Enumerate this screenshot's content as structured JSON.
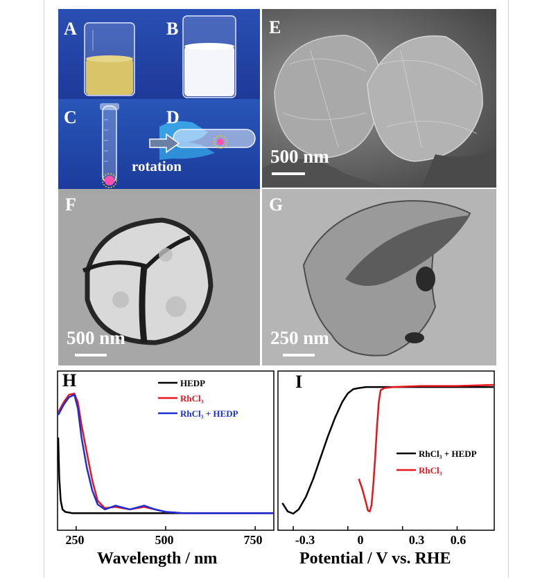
{
  "figure": {
    "panels": {
      "A": "A",
      "B": "B",
      "C": "C",
      "D": "D",
      "E": "E",
      "F": "F",
      "G": "G",
      "H": "H",
      "I": "I"
    },
    "annotation_rotation": "rotation",
    "scalebars": {
      "E": "500 nm",
      "F": "500 nm",
      "G": "250 nm"
    },
    "colors": {
      "photo_bg": "#1f3f9f",
      "black": "#000000",
      "red": "#e8141c",
      "blue": "#1a2fd6"
    }
  },
  "chart_data": [
    {
      "type": "line",
      "panel": "H",
      "xlabel": "Wavelength / nm",
      "xticks": [
        250,
        500,
        750
      ],
      "xlim": [
        200,
        800
      ],
      "ylabel": "",
      "legend": [
        "HEDP",
        "RhCl3",
        "RhCl3 + HEDP"
      ],
      "series": [
        {
          "name": "HEDP",
          "color": "#000000",
          "x": [
            200,
            203,
            207,
            212,
            220,
            240,
            270,
            320,
            400,
            500,
            600,
            700,
            800
          ],
          "y": [
            0.62,
            0.3,
            0.12,
            0.05,
            0.03,
            0.02,
            0.02,
            0.02,
            0.02,
            0.02,
            0.02,
            0.02,
            0.02
          ]
        },
        {
          "name": "RhCl3",
          "color": "#e8141c",
          "x": [
            200,
            215,
            230,
            245,
            255,
            265,
            280,
            295,
            310,
            330,
            360,
            400,
            440,
            470,
            500,
            550,
            600,
            700,
            800
          ],
          "y": [
            0.82,
            0.9,
            0.96,
            0.97,
            0.9,
            0.72,
            0.5,
            0.28,
            0.12,
            0.06,
            0.07,
            0.05,
            0.07,
            0.05,
            0.03,
            0.02,
            0.02,
            0.02,
            0.02
          ]
        },
        {
          "name": "RhCl3 + HEDP",
          "color": "#1a2fd6",
          "x": [
            200,
            215,
            230,
            245,
            255,
            265,
            280,
            295,
            310,
            330,
            360,
            400,
            440,
            470,
            500,
            550,
            600,
            700,
            800
          ],
          "y": [
            0.8,
            0.88,
            0.94,
            0.96,
            0.85,
            0.62,
            0.38,
            0.2,
            0.09,
            0.05,
            0.08,
            0.05,
            0.08,
            0.05,
            0.03,
            0.02,
            0.02,
            0.02,
            0.02
          ]
        }
      ]
    },
    {
      "type": "line",
      "panel": "I",
      "xlabel": "Potential / V vs. RHE",
      "xticks": [
        -0.3,
        0.0,
        0.3,
        0.6
      ],
      "xlim": [
        -0.38,
        0.8
      ],
      "ylabel": "",
      "legend": [
        "RhCl3 + HEDP",
        "RhCl3"
      ],
      "series": [
        {
          "name": "RhCl3 + HEDP",
          "color": "#000000",
          "x": [
            -0.36,
            -0.33,
            -0.3,
            -0.27,
            -0.23,
            -0.19,
            -0.15,
            -0.11,
            -0.07,
            -0.03,
            0.0,
            0.03,
            0.06,
            0.1,
            0.2,
            0.4,
            0.6,
            0.8
          ],
          "y": [
            -0.78,
            -0.86,
            -0.88,
            -0.84,
            -0.72,
            -0.55,
            -0.35,
            -0.15,
            0.03,
            0.18,
            0.26,
            0.3,
            0.31,
            0.32,
            0.32,
            0.32,
            0.32,
            0.32
          ]
        },
        {
          "name": "RhCl3",
          "color": "#e8141c",
          "x": [
            0.06,
            0.08,
            0.1,
            0.11,
            0.12,
            0.13,
            0.14,
            0.15,
            0.16,
            0.17,
            0.18,
            0.2,
            0.25,
            0.4,
            0.6,
            0.8
          ],
          "y": [
            -0.55,
            -0.65,
            -0.78,
            -0.85,
            -0.86,
            -0.8,
            -0.6,
            -0.35,
            -0.05,
            0.18,
            0.29,
            0.31,
            0.32,
            0.33,
            0.33,
            0.34
          ]
        }
      ]
    }
  ]
}
